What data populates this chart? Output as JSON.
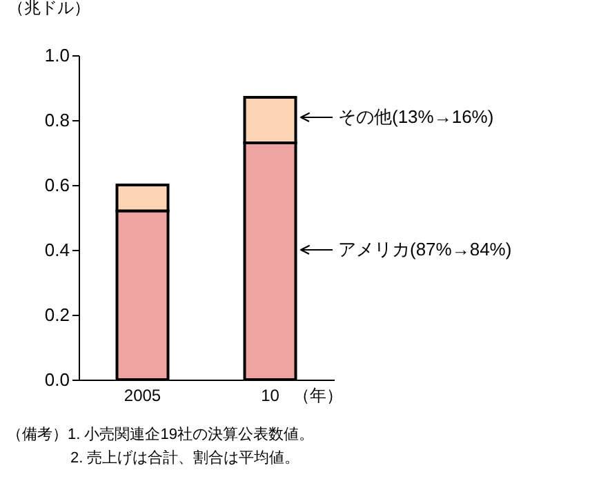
{
  "chart_data": {
    "type": "bar",
    "stacked": true,
    "ylabel": "（兆ドル）",
    "xlabel": "（年）",
    "categories": [
      "2005",
      "10"
    ],
    "series": [
      {
        "color": "#eea4a0",
        "values": [
          0.52,
          0.73
        ]
      },
      {
        "color": "#fcd5b4",
        "values": [
          0.08,
          0.14
        ]
      }
    ],
    "ylim": [
      0,
      1.0
    ],
    "yticks": [
      {
        "value": 0,
        "label": "0.0"
      },
      0.2,
      0.4,
      0.6,
      0.8,
      {
        "value": 1.0,
        "label": "1.0"
      }
    ],
    "grid": false,
    "legend": false,
    "annotations": [
      "その他(13%→16%)",
      "アメリカ(87%→84%)",
      "（備考）1. 小売関連企19社の決算公表数値。",
      "2. 売上げは合計、割合は平均値。"
    ]
  }
}
